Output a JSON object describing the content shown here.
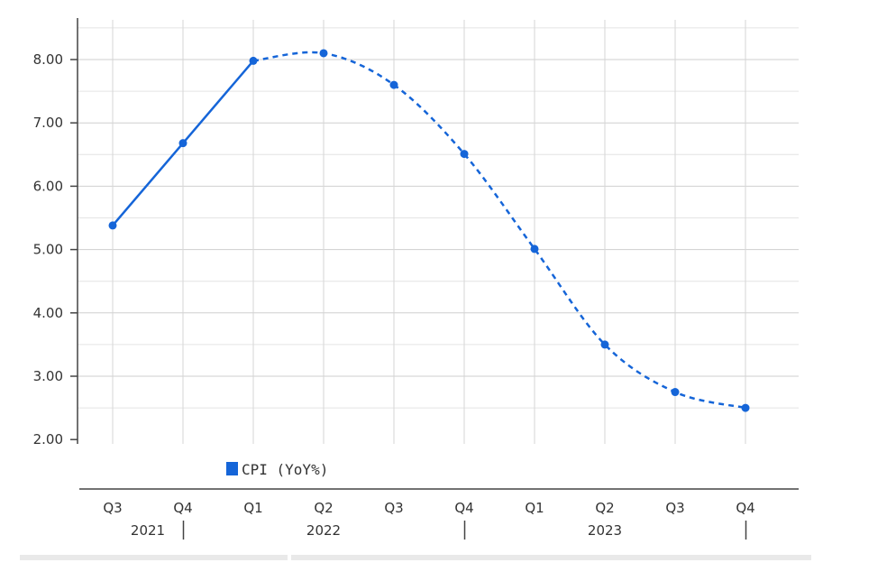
{
  "chart_data": {
    "type": "line",
    "x": [
      "Q3 2021",
      "Q4 2021",
      "Q1 2022",
      "Q2 2022",
      "Q3 2022",
      "Q4 2022",
      "Q1 2023",
      "Q2 2023",
      "Q3 2023",
      "Q4 2023"
    ],
    "quarter_labels": [
      "Q3",
      "Q4",
      "Q1",
      "Q2",
      "Q3",
      "Q4",
      "Q1",
      "Q2",
      "Q3",
      "Q4"
    ],
    "year_labels": [
      {
        "label": "2021",
        "index": 0.5
      },
      {
        "label": "2022",
        "index": 3
      },
      {
        "label": "2023",
        "index": 7
      }
    ],
    "year_separator_indices": [
      1,
      5,
      9
    ],
    "series": [
      {
        "name": "CPI (YoY%)",
        "values": [
          5.38,
          6.68,
          7.98,
          8.1,
          7.6,
          6.51,
          5.01,
          3.5,
          2.75,
          2.5
        ],
        "actual_through_index": 2,
        "color": "#1565d8"
      }
    ],
    "ylim": [
      2.0,
      8.5
    ],
    "yticks": [
      2,
      3,
      4,
      5,
      6,
      7,
      8
    ],
    "ytick_labels": [
      "2.00",
      "3.00",
      "4.00",
      "5.00",
      "6.00",
      "7.00",
      "8.00"
    ],
    "grid": true,
    "legend_position": "bottom-left",
    "title": "",
    "xlabel": "",
    "ylabel": ""
  }
}
